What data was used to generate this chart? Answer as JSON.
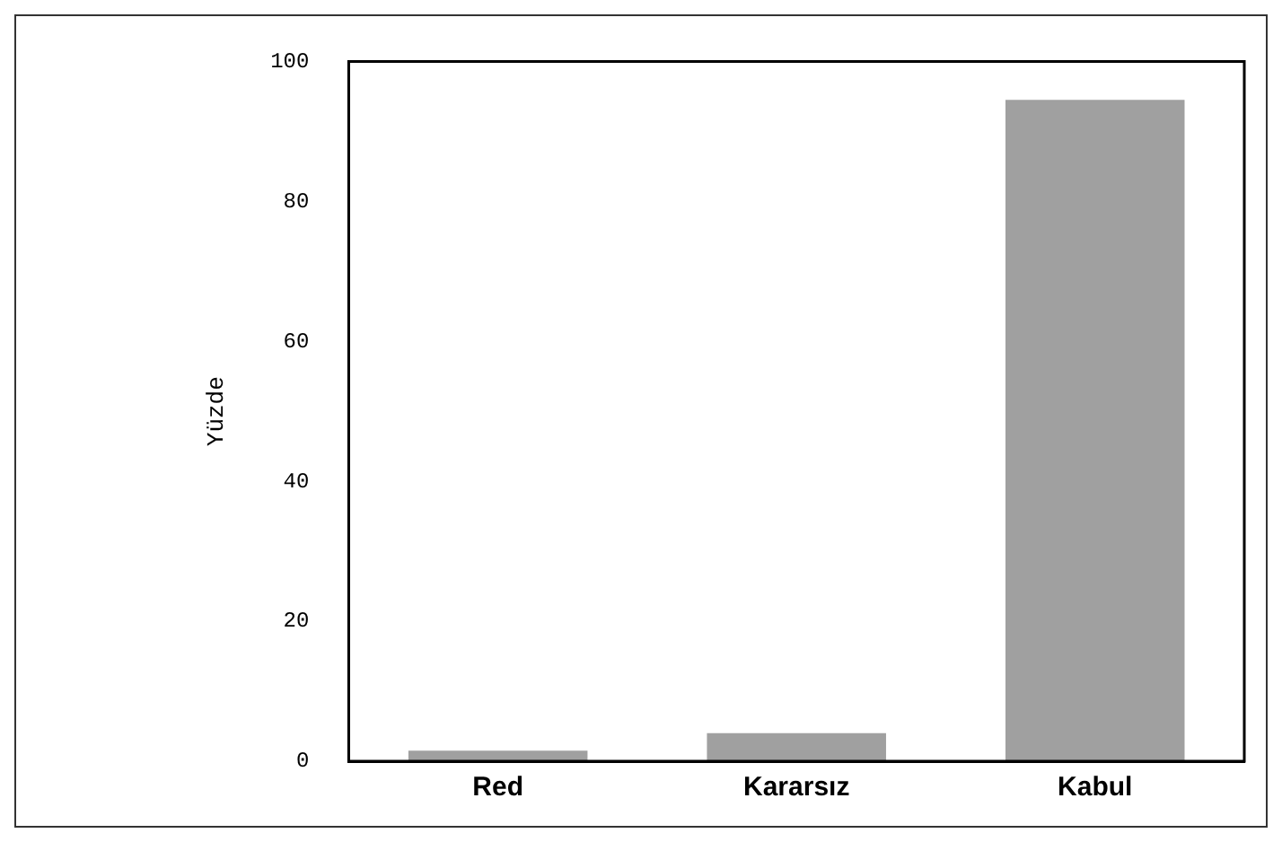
{
  "chart_data": {
    "type": "bar",
    "ylabel": "Yüzde",
    "categories": [
      "Red",
      "Kararsız",
      "Kabul"
    ],
    "values": [
      1.5,
      4,
      94.5
    ],
    "color": "#a0a0a0",
    "ylim": [
      0,
      100
    ],
    "yticks": [
      0,
      20,
      40,
      60,
      80,
      100
    ],
    "grid": false,
    "legend": false
  }
}
